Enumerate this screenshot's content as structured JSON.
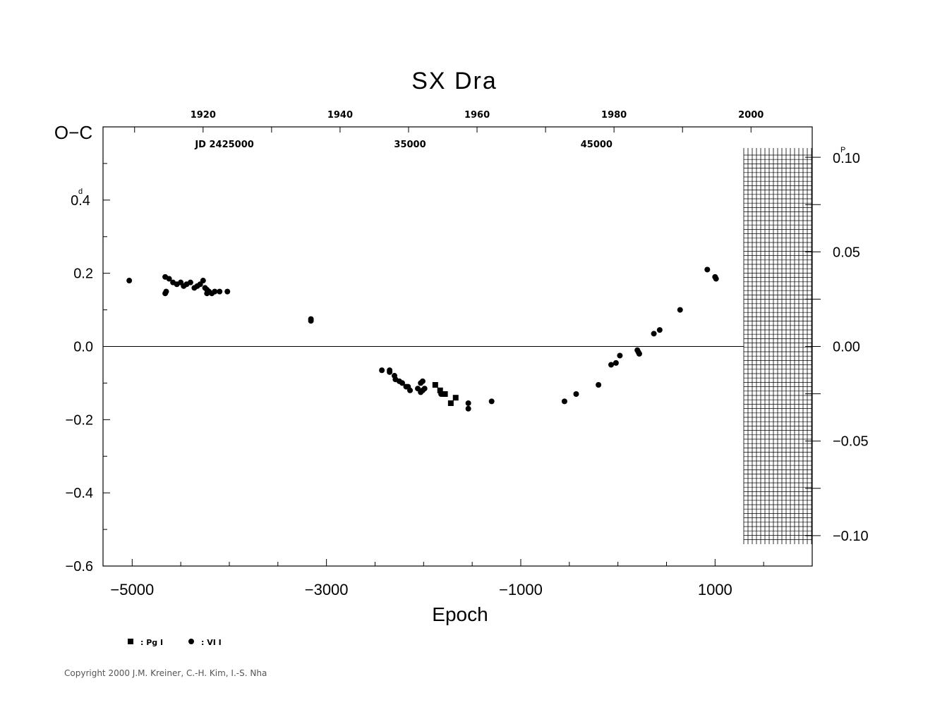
{
  "chart_data": {
    "type": "scatter",
    "title": "SX Dra",
    "xlabel": "Epoch",
    "ylabel": "O−C",
    "y_unit_label": "0.4",
    "y_unit_sup": "d",
    "right_unit_label": "0.10",
    "right_unit_sup": "P",
    "xlim": [
      -5300,
      2000
    ],
    "ylim": [
      -0.6,
      0.6
    ],
    "x_ticks": [
      {
        "value": -5000,
        "label": "−5000"
      },
      {
        "value": -3000,
        "label": "−3000"
      },
      {
        "value": -1000,
        "label": "−1000"
      },
      {
        "value": 1000,
        "label": "1000"
      }
    ],
    "y_ticks": [
      {
        "value": 0.2,
        "label": "0.2"
      },
      {
        "value": 0.0,
        "label": "0.0"
      },
      {
        "value": -0.2,
        "label": "−0.2"
      },
      {
        "value": -0.4,
        "label": "−0.4"
      },
      {
        "value": -0.6,
        "label": "−0.6"
      }
    ],
    "right_ticks": [
      {
        "value": 0.05,
        "label": "0.05"
      },
      {
        "value": 0.0,
        "label": "0.00"
      },
      {
        "value": -0.05,
        "label": "−0.05"
      },
      {
        "value": -0.1,
        "label": "−0.10"
      }
    ],
    "period_days": 5.17,
    "top_year_ticks": [
      {
        "epoch": -4270,
        "label": "1920"
      },
      {
        "epoch": -2860,
        "label": "1940"
      },
      {
        "epoch": -1450,
        "label": "1960"
      },
      {
        "epoch": -40,
        "label": "1980"
      },
      {
        "epoch": 1370,
        "label": "2000"
      }
    ],
    "jd_labels": [
      {
        "epoch": -4050,
        "label": "JD 2425000"
      },
      {
        "epoch": -2140,
        "label": "35000"
      },
      {
        "epoch": -220,
        "label": "45000"
      }
    ],
    "legend": [
      {
        "marker": "square",
        "label": ": Pg I"
      },
      {
        "marker": "circle",
        "label": ": VI I"
      }
    ],
    "series": [
      {
        "name": "Pg I",
        "marker": "square",
        "points": [
          [
            -1880,
            -0.105
          ],
          [
            -1830,
            -0.12
          ],
          [
            -1780,
            -0.13
          ],
          [
            -1720,
            -0.155
          ],
          [
            -1670,
            -0.14
          ]
        ]
      },
      {
        "name": "VI I",
        "marker": "circle",
        "points": [
          [
            -5030,
            0.18
          ],
          [
            -4660,
            0.19
          ],
          [
            -4620,
            0.185
          ],
          [
            -4580,
            0.175
          ],
          [
            -4540,
            0.17
          ],
          [
            -4500,
            0.175
          ],
          [
            -4470,
            0.165
          ],
          [
            -4440,
            0.17
          ],
          [
            -4400,
            0.175
          ],
          [
            -4360,
            0.16
          ],
          [
            -4330,
            0.165
          ],
          [
            -4300,
            0.17
          ],
          [
            -4270,
            0.18
          ],
          [
            -4250,
            0.16
          ],
          [
            -4230,
            0.155
          ],
          [
            -4210,
            0.15
          ],
          [
            -4180,
            0.145
          ],
          [
            -4150,
            0.15
          ],
          [
            -4100,
            0.15
          ],
          [
            -4020,
            0.15
          ],
          [
            -4660,
            0.145
          ],
          [
            -4650,
            0.15
          ],
          [
            -4230,
            0.145
          ],
          [
            -3160,
            0.075
          ],
          [
            -3160,
            0.07
          ],
          [
            -2430,
            -0.065
          ],
          [
            -2350,
            -0.065
          ],
          [
            -2350,
            -0.07
          ],
          [
            -2300,
            -0.08
          ],
          [
            -2290,
            -0.09
          ],
          [
            -2250,
            -0.095
          ],
          [
            -2220,
            -0.1
          ],
          [
            -2180,
            -0.11
          ],
          [
            -2160,
            -0.11
          ],
          [
            -2140,
            -0.12
          ],
          [
            -2060,
            -0.115
          ],
          [
            -2030,
            -0.1
          ],
          [
            -2010,
            -0.095
          ],
          [
            -2010,
            -0.12
          ],
          [
            -2030,
            -0.125
          ],
          [
            -1990,
            -0.115
          ],
          [
            -1820,
            -0.13
          ],
          [
            -1800,
            -0.13
          ],
          [
            -1540,
            -0.17
          ],
          [
            -1540,
            -0.155
          ],
          [
            -1300,
            -0.15
          ],
          [
            -550,
            -0.15
          ],
          [
            -430,
            -0.13
          ],
          [
            -200,
            -0.105
          ],
          [
            -70,
            -0.05
          ],
          [
            -20,
            -0.045
          ],
          [
            20,
            -0.025
          ],
          [
            200,
            -0.01
          ],
          [
            210,
            -0.015
          ],
          [
            220,
            -0.02
          ],
          [
            370,
            0.035
          ],
          [
            430,
            0.045
          ],
          [
            640,
            0.1
          ],
          [
            920,
            0.21
          ],
          [
            1000,
            0.19
          ],
          [
            1010,
            0.185
          ]
        ]
      }
    ]
  },
  "copyright": "Copyright 2000 J.M. Kreiner, C.-H. Kim, I.-S. Nha"
}
